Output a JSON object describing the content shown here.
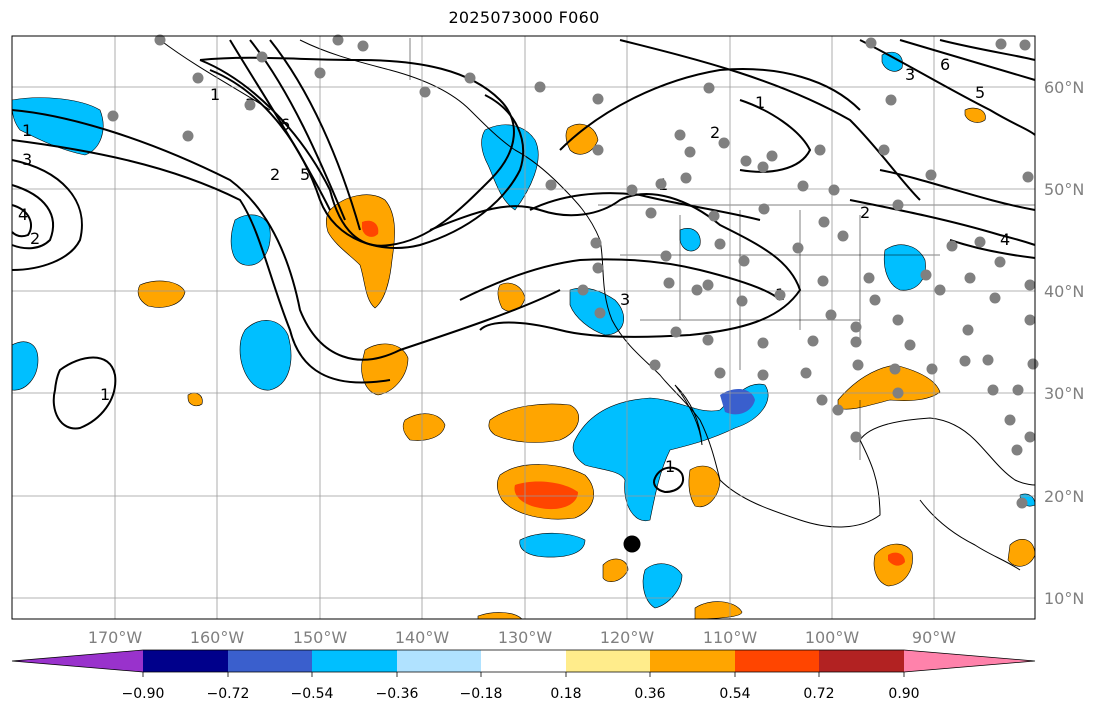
{
  "title": "2025073000 F060",
  "map": {
    "lon_labels": [
      "170°W",
      "160°W",
      "150°W",
      "140°W",
      "130°W",
      "120°W",
      "110°W",
      "100°W",
      "90°W"
    ],
    "lat_labels": [
      "60°N",
      "50°N",
      "40°N",
      "30°N",
      "20°N",
      "10°N"
    ],
    "label_color": "#808080",
    "grid_color": "#9a9a9a",
    "contour_labels": [
      "1",
      "2",
      "3",
      "4",
      "5",
      "6",
      "1",
      "2",
      "3",
      "1",
      "2",
      "3",
      "5",
      "6",
      "1",
      "1",
      "1",
      "1",
      "2",
      "3",
      "4"
    ]
  },
  "colorbar": {
    "tick_labels": [
      "−0.90",
      "−0.72",
      "−0.54",
      "−0.36",
      "−0.18",
      "0.18",
      "0.36",
      "0.54",
      "0.72",
      "0.90"
    ],
    "colors": [
      "#9932cc",
      "#00008b",
      "#3a5fcd",
      "#00bfff",
      "#b0e2ff",
      "#ffffff",
      "#ffec8b",
      "#ffa500",
      "#ff4500",
      "#b22222",
      "#ff82ab"
    ]
  }
}
